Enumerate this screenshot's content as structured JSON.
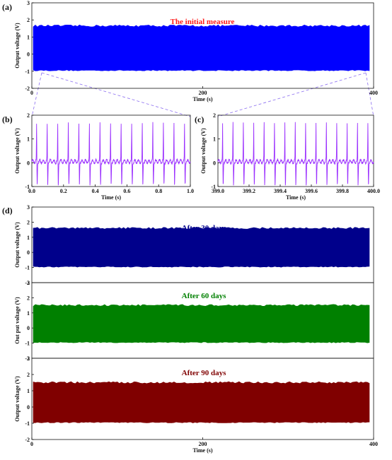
{
  "figure": {
    "panel_labels": [
      "(a)",
      "(b)",
      "(c)",
      "(d)"
    ]
  },
  "chart_data": [
    {
      "panel": "(a)",
      "type": "area",
      "annotation": "The initial measure",
      "xlabel": "Time (s)",
      "ylabel": "Output voltage (V)",
      "xlim": [
        0,
        400
      ],
      "ylim": [
        -2,
        3
      ],
      "x_ticks": [
        0,
        200,
        400
      ],
      "y_ticks": [
        -2,
        -1,
        0,
        1,
        2,
        3
      ],
      "upper_envelope": 1.65,
      "lower_envelope": -0.95,
      "color": "#0000ff"
    },
    {
      "panel": "(b)",
      "type": "line",
      "xlabel": "Time (s)",
      "ylabel": "Output voltage (V)",
      "xlim": [
        0.0,
        1.0
      ],
      "ylim": [
        -1,
        2
      ],
      "x_ticks": [
        "0.0",
        "0.2",
        "0.4",
        "0.6",
        "0.8",
        "1.0"
      ],
      "y_ticks": [
        -1,
        0,
        1,
        2
      ],
      "peaks": 15,
      "peak_value": 1.6,
      "trough_value": -0.95,
      "color": "#9b30ff"
    },
    {
      "panel": "(c)",
      "type": "line",
      "xlabel": "Time (s)",
      "ylabel": "Output voltage (V)",
      "xlim": [
        399.0,
        400.0
      ],
      "ylim": [
        -1,
        2
      ],
      "x_ticks": [
        "399.0",
        "399.2",
        "399.4",
        "399.6",
        "399.8",
        "400.0"
      ],
      "y_ticks": [
        -1,
        0,
        1,
        2
      ],
      "peaks": 15,
      "peak_value": 1.6,
      "trough_value": -0.95,
      "color": "#9b30ff"
    },
    {
      "panel": "(d)",
      "type": "area",
      "xlabel": "Time (s)",
      "xlim": [
        0,
        400
      ],
      "x_ticks": [
        0,
        200,
        400
      ],
      "subplots": [
        {
          "annotation": "After 30 days",
          "ylabel": "Output voltage (V)",
          "ylim": [
            -2,
            3
          ],
          "y_ticks": [
            -2,
            -1,
            0,
            1,
            2,
            3
          ],
          "upper_envelope": 1.6,
          "lower_envelope": -0.95,
          "color": "#00008b"
        },
        {
          "annotation": "After 60 days",
          "ylabel": "Out put voltage (V)",
          "ylim": [
            -2,
            3
          ],
          "y_ticks": [
            -2,
            -1,
            0,
            1,
            2,
            3
          ],
          "upper_envelope": 1.5,
          "lower_envelope": -0.95,
          "color": "#008000"
        },
        {
          "annotation": "After 90 days",
          "ylabel": "Output voltage (V)",
          "ylim": [
            -2,
            3
          ],
          "y_ticks": [
            -2,
            -1,
            0,
            1,
            2,
            3
          ],
          "upper_envelope": 1.5,
          "lower_envelope": -0.95,
          "color": "#800000"
        }
      ]
    }
  ]
}
